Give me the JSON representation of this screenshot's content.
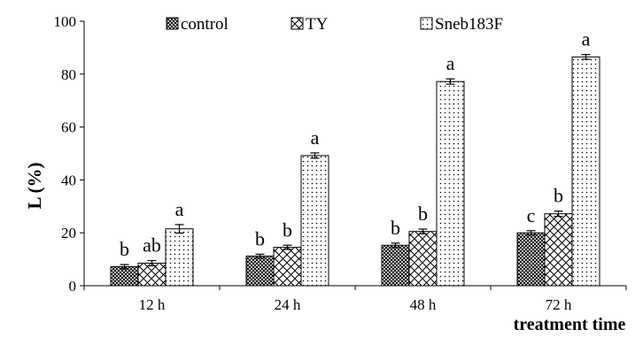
{
  "chart_data": {
    "type": "bar",
    "categories": [
      "12 h",
      "24 h",
      "48 h",
      "72 h"
    ],
    "series": [
      {
        "name": "control",
        "pattern": "crosshatch",
        "values": [
          7.2,
          11.2,
          15.3,
          20.0
        ],
        "errors": [
          0.8,
          0.7,
          0.8,
          0.8
        ],
        "labels": [
          "b",
          "b",
          "b",
          "c"
        ]
      },
      {
        "name": "TY",
        "pattern": "diamond-hatch",
        "values": [
          8.5,
          14.5,
          20.5,
          27.2
        ],
        "errors": [
          1.0,
          0.8,
          0.9,
          1.0
        ],
        "labels": [
          "ab",
          "b",
          "b",
          "b"
        ]
      },
      {
        "name": "Sneb183F",
        "pattern": "dots",
        "values": [
          21.5,
          49.2,
          77.2,
          86.5
        ],
        "errors": [
          1.6,
          1.0,
          1.0,
          0.9
        ],
        "labels": [
          "a",
          "a",
          "a",
          "a"
        ]
      }
    ],
    "title": "",
    "xlabel": "treatment time",
    "ylabel": "L (%)",
    "ylim": [
      0,
      100
    ],
    "yticks": [
      0,
      20,
      40,
      60,
      80,
      100
    ],
    "grid": false,
    "legend_position": "top"
  }
}
